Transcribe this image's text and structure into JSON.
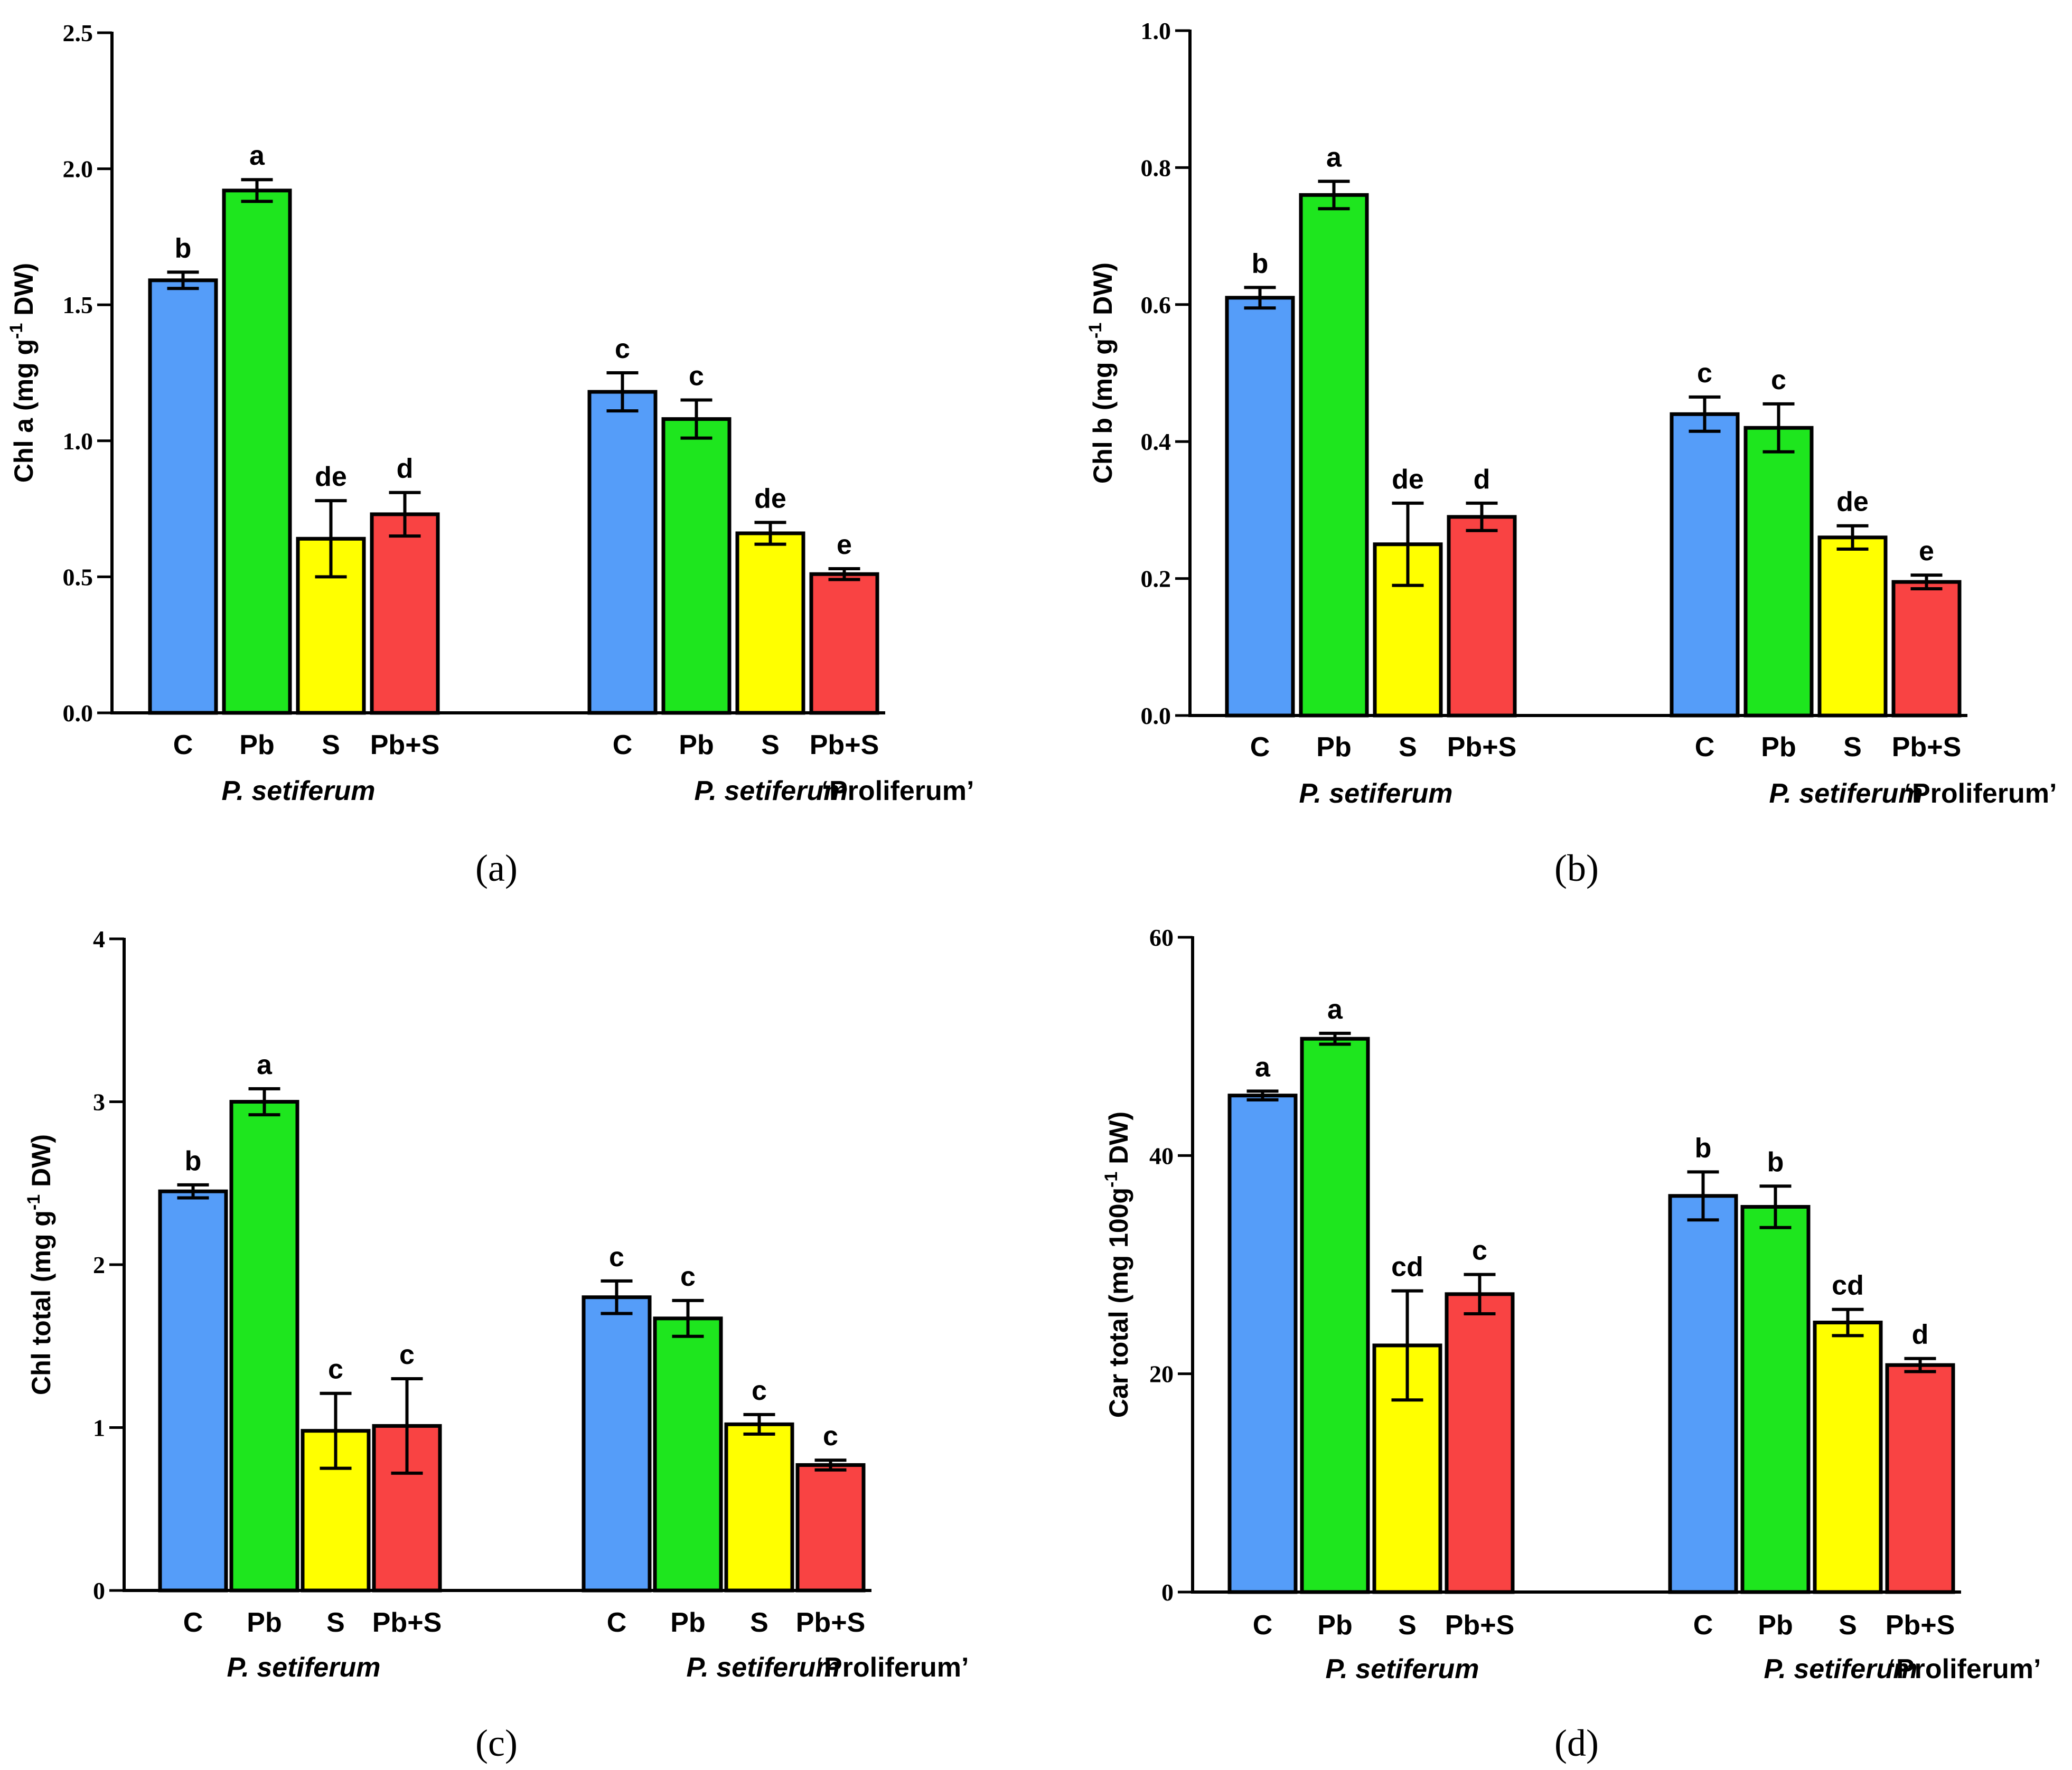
{
  "colors": {
    "C": "#559df9",
    "Pb": "#1ee61e",
    "S": "#ffff00",
    "Pb+S": "#f94343",
    "stroke": "#000000"
  },
  "chart_data": [
    {
      "type": "bar",
      "panel_label": "(a)",
      "ylabel_parts": [
        "Chl a (mg g",
        "-1",
        " DW)"
      ],
      "ylim": [
        0,
        2.5
      ],
      "yticks": [
        "0.0",
        "0.5",
        "1.0",
        "1.5",
        "2.0",
        "2.5"
      ],
      "categories": [
        "C",
        "Pb",
        "S",
        "Pb+S"
      ],
      "groups": [
        {
          "species": "P. setiferum",
          "cultivar": "",
          "values": [
            1.59,
            1.92,
            0.64,
            0.73
          ],
          "errors": [
            0.03,
            0.04,
            0.14,
            0.08
          ],
          "letters": [
            "b",
            "a",
            "de",
            "d"
          ]
        },
        {
          "species": "P. setiferum",
          "cultivar": "‘Proliferum’",
          "values": [
            1.18,
            1.08,
            0.66,
            0.51
          ],
          "errors": [
            0.07,
            0.07,
            0.04,
            0.02
          ],
          "letters": [
            "c",
            "c",
            "de",
            "e"
          ]
        }
      ]
    },
    {
      "type": "bar",
      "panel_label": "(b)",
      "ylabel_parts": [
        "Chl b (mg g",
        "-1",
        " DW)"
      ],
      "ylim": [
        0,
        1.0
      ],
      "yticks": [
        "0.0",
        "0.2",
        "0.4",
        "0.6",
        "0.8",
        "1.0"
      ],
      "categories": [
        "C",
        "Pb",
        "S",
        "Pb+S"
      ],
      "groups": [
        {
          "species": "P. setiferum",
          "cultivar": "",
          "values": [
            0.61,
            0.76,
            0.25,
            0.29
          ],
          "errors": [
            0.015,
            0.02,
            0.06,
            0.02
          ],
          "letters": [
            "b",
            "a",
            "de",
            "d"
          ]
        },
        {
          "species": "P. setiferum",
          "cultivar": "‘Proliferum’",
          "values": [
            0.44,
            0.42,
            0.26,
            0.195
          ],
          "errors": [
            0.025,
            0.035,
            0.017,
            0.01
          ],
          "letters": [
            "c",
            "c",
            "de",
            "e"
          ]
        }
      ]
    },
    {
      "type": "bar",
      "panel_label": "(c)",
      "ylabel_parts": [
        "Chl total (mg g",
        "-1",
        " DW)"
      ],
      "ylim": [
        0,
        4
      ],
      "yticks": [
        "0",
        "1",
        "2",
        "3",
        "4"
      ],
      "categories": [
        "C",
        "Pb",
        "S",
        "Pb+S"
      ],
      "groups": [
        {
          "species": "P. setiferum",
          "cultivar": "",
          "values": [
            2.45,
            3.0,
            0.98,
            1.01
          ],
          "errors": [
            0.04,
            0.08,
            0.23,
            0.29
          ],
          "letters": [
            "b",
            "a",
            "c",
            "c"
          ]
        },
        {
          "species": "P. setiferum",
          "cultivar": "‘Proliferum’",
          "values": [
            1.8,
            1.67,
            1.02,
            0.77
          ],
          "errors": [
            0.1,
            0.11,
            0.06,
            0.03
          ],
          "letters": [
            "c",
            "c",
            "c",
            "c"
          ]
        }
      ]
    },
    {
      "type": "bar",
      "panel_label": "(d)",
      "ylabel_parts": [
        "Car total (mg 100g",
        "-1",
        " DW)"
      ],
      "ylim": [
        0,
        60
      ],
      "yticks": [
        "0",
        "20",
        "40",
        "60"
      ],
      "categories": [
        "C",
        "Pb",
        "S",
        "Pb+S"
      ],
      "groups": [
        {
          "species": "P. setiferum",
          "cultivar": "",
          "values": [
            45.5,
            50.7,
            22.6,
            27.3
          ],
          "errors": [
            0.4,
            0.5,
            5.0,
            1.8
          ],
          "letters": [
            "a",
            "a",
            "cd",
            "c"
          ]
        },
        {
          "species": "P. setiferum",
          "cultivar": "‘Proliferum’",
          "values": [
            36.3,
            35.3,
            24.7,
            20.8
          ],
          "errors": [
            2.2,
            1.9,
            1.2,
            0.6
          ],
          "letters": [
            "b",
            "b",
            "cd",
            "d"
          ]
        }
      ]
    }
  ]
}
